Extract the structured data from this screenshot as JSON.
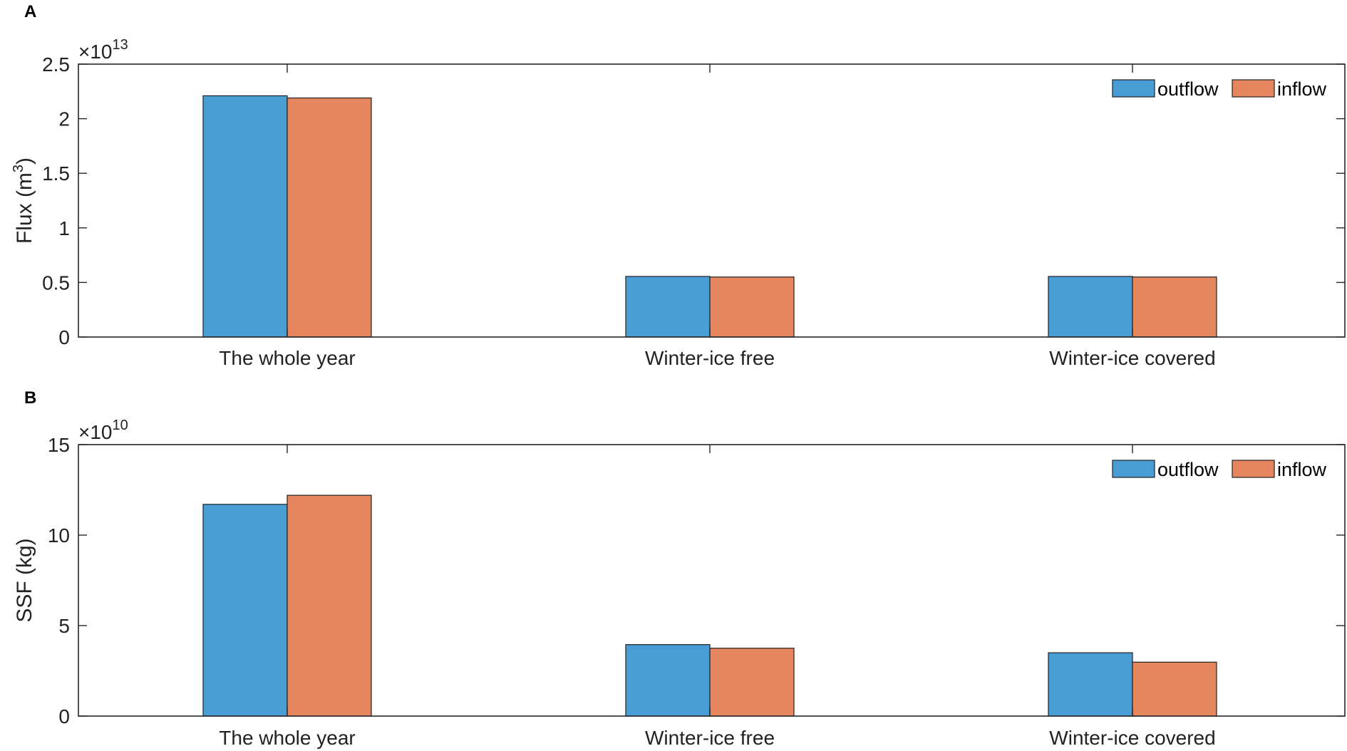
{
  "chart_data": [
    {
      "panel": "A",
      "type": "bar",
      "categories": [
        "The whole year",
        "Winter-ice free",
        "Winter-ice covered"
      ],
      "series": [
        {
          "name": "outflow",
          "values": [
            2.21,
            0.555,
            0.555
          ]
        },
        {
          "name": "inflow",
          "values": [
            2.19,
            0.55,
            0.55
          ]
        }
      ],
      "ylabel": "Flux (m",
      "ylabel_sup": "3",
      "ylabel_end": ")",
      "exponent_base": "×10",
      "exponent_power": "13",
      "ylim": [
        0,
        2.5
      ],
      "yticks": [
        0,
        0.5,
        1,
        1.5,
        2,
        2.5
      ],
      "ytick_labels": [
        "0",
        "0.5",
        "1",
        "1.5",
        "2",
        "2.5"
      ],
      "legend_position": "top-right",
      "grid": false
    },
    {
      "panel": "B",
      "type": "bar",
      "categories": [
        "The whole year",
        "Winter-ice free",
        "Winter-ice covered"
      ],
      "series": [
        {
          "name": "outflow",
          "values": [
            11.7,
            3.95,
            3.5
          ]
        },
        {
          "name": "inflow",
          "values": [
            12.2,
            3.75,
            2.98
          ]
        }
      ],
      "ylabel": "SSF (kg)",
      "exponent_base": "×10",
      "exponent_power": "10",
      "ylim": [
        0,
        15
      ],
      "yticks": [
        0,
        5,
        10,
        15
      ],
      "ytick_labels": [
        "0",
        "5",
        "10",
        "15"
      ],
      "legend_position": "top-right",
      "grid": false
    }
  ],
  "colors": {
    "outflow": "#4a9dd4",
    "inflow": "#e5865e",
    "axis": "#262626"
  }
}
